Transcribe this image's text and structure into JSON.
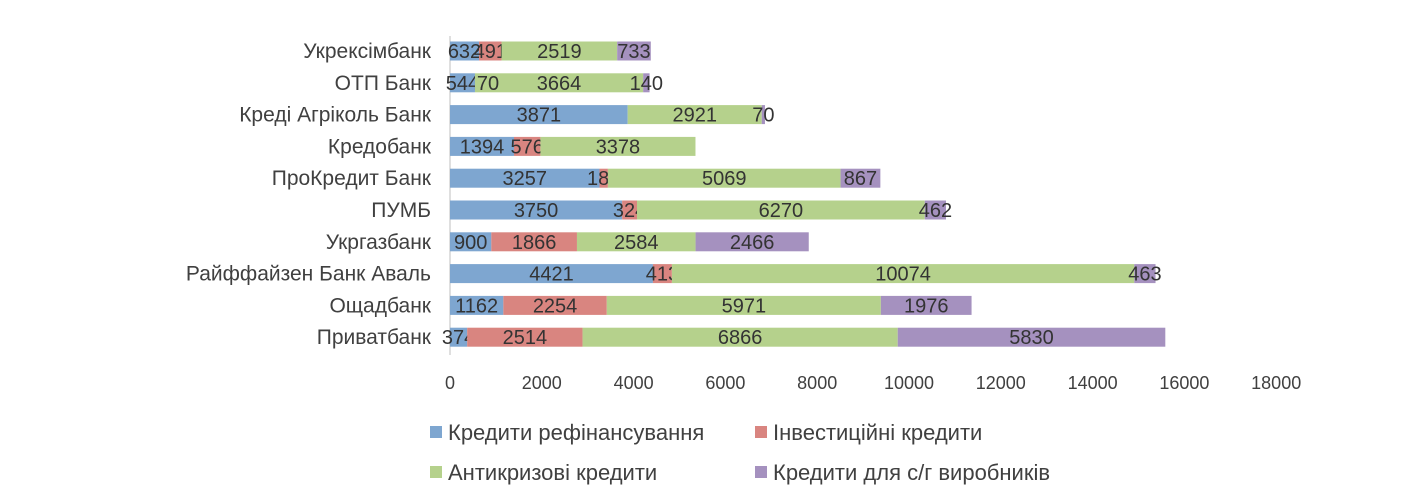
{
  "chart_data": {
    "type": "bar",
    "orientation": "horizontal",
    "stacked": true,
    "categories": [
      "Укрексімбанк",
      "ОТП Банк",
      "Креді Агріколь Банк",
      "Кредобанк",
      "ПроКредит Банк",
      "ПУМБ",
      "Укргазбанк",
      "Райффайзен Банк Аваль",
      "Ощадбанк",
      "Приватбанк"
    ],
    "series": [
      {
        "name": "Кредити рефінансування",
        "color": "#7ea6d0",
        "values": [
          632,
          544,
          3871,
          1394,
          3257,
          3750,
          900,
          4421,
          1162,
          374
        ],
        "labels": [
          "632",
          "544",
          "3871",
          "1394",
          "3257",
          "3750",
          "900",
          "4421",
          "1162",
          "374"
        ]
      },
      {
        "name": "Інвестиційні кредити",
        "color": "#d98580",
        "values": [
          491,
          0,
          0,
          576,
          183,
          324,
          1866,
          413,
          2254,
          2514
        ],
        "labels": [
          "491",
          null,
          null,
          "576",
          "183",
          "324",
          "1866",
          "413",
          "2254",
          "2514"
        ]
      },
      {
        "name": "Антикризові кредити",
        "color": "#b5d18c",
        "values": [
          2519,
          3664,
          2921,
          3378,
          5069,
          6270,
          2584,
          10074,
          5971,
          6866
        ],
        "labels": [
          "2519",
          "3664",
          "2921",
          "3378",
          "5069",
          "6270",
          "2584",
          "10074",
          "5971",
          "6866"
        ]
      },
      {
        "name": "Кредити для с/г виробників",
        "color": "#a591bf",
        "values": [
          733,
          140,
          70,
          0,
          867,
          462,
          2466,
          463,
          1976,
          5830
        ],
        "labels": [
          "733",
          "140",
          "70",
          null,
          "867",
          "462",
          "2466",
          "463",
          "1976",
          "5830"
        ]
      }
    ],
    "extra_labels": [
      {
        "category": "ОТП Банк",
        "text": "70"
      }
    ],
    "xlim": [
      0,
      18000
    ],
    "xticks": [
      "0",
      "2000",
      "4000",
      "6000",
      "8000",
      "10000",
      "12000",
      "14000",
      "16000",
      "18000"
    ],
    "grid": false,
    "legend": "bottom",
    "title": "",
    "xlabel": "",
    "ylabel": ""
  }
}
